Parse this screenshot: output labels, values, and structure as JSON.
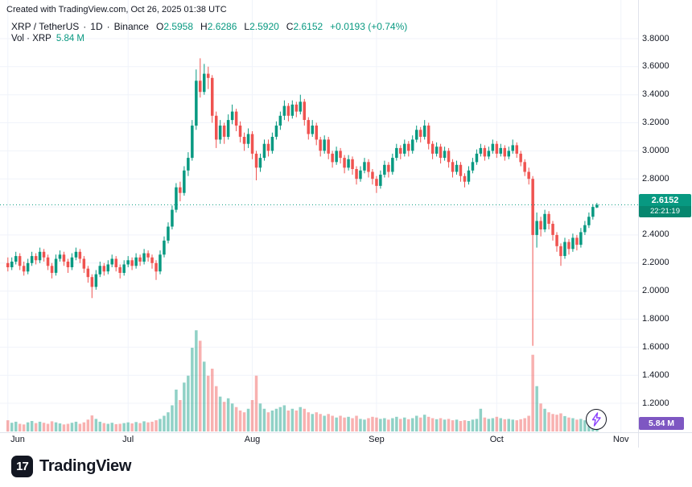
{
  "attribution": "Created with TradingView.com, Oct 26, 2025 01:38 UTC",
  "legend": {
    "symbol": "XRP / TetherUS",
    "dot1": "·",
    "interval": "1D",
    "dot2": "·",
    "exchange": "Binance",
    "ohlc": [
      {
        "k": "O",
        "v": "2.5958"
      },
      {
        "k": "H",
        "v": "2.6286"
      },
      {
        "k": "L",
        "v": "2.5920"
      },
      {
        "k": "C",
        "v": "2.6152"
      }
    ],
    "change": "+0.0193 (+0.74%)",
    "volume_label": "Vol · XRP",
    "volume_value": "5.84 M"
  },
  "price_scale": {
    "ticks": [
      "3.8000",
      "3.6000",
      "3.4000",
      "3.2000",
      "3.0000",
      "2.8000",
      "2.6000",
      "2.4000",
      "2.2000",
      "2.0000",
      "1.8000",
      "1.6000",
      "1.4000",
      "1.2000"
    ],
    "last_price": "2.6152",
    "countdown": "22:21:19",
    "volume_value": "5.84 M"
  },
  "time_scale": {
    "months": [
      {
        "label": "Jun",
        "bar_index": 0
      },
      {
        "label": "Jul",
        "bar_index": 30
      },
      {
        "label": "Aug",
        "bar_index": 61
      },
      {
        "label": "Sep",
        "bar_index": 92
      },
      {
        "label": "Oct",
        "bar_index": 122
      },
      {
        "label": "Nov",
        "bar_index": 153
      }
    ]
  },
  "footer": {
    "logo_mark": "17",
    "brand": "TradingView"
  },
  "colors": {
    "up_color": "#089981",
    "down_color": "#ef5350",
    "grid": "#f0f3fa",
    "axis_line": "#e0e3eb",
    "text": "#131722",
    "badge_teal": "#089981",
    "vol_badge_bg": "#7e57c2",
    "bolt": "#8a3ffc"
  },
  "chart_data": {
    "type": "candlestick",
    "title": "XRP / TetherUS · 1D · Binance",
    "symbol": "XRP/TetherUS",
    "exchange": "Binance",
    "interval": "1D",
    "x_range": [
      "2025-06-01",
      "2025-10-26"
    ],
    "ylim": [
      1.2,
      3.8
    ],
    "vol_axis_max": 30,
    "volume_units": "millions XRP",
    "last_close": 2.6152,
    "ohlcv_columns": [
      "open",
      "high",
      "low",
      "close",
      "volume_M"
    ],
    "ohlcv": [
      [
        2.2,
        2.24,
        2.14,
        2.17,
        3.2
      ],
      [
        2.17,
        2.24,
        2.15,
        2.21,
        2.5
      ],
      [
        2.21,
        2.28,
        2.19,
        2.25,
        2.8
      ],
      [
        2.25,
        2.27,
        2.15,
        2.18,
        2.2
      ],
      [
        2.18,
        2.21,
        2.11,
        2.14,
        2.0
      ],
      [
        2.14,
        2.23,
        2.12,
        2.2,
        2.6
      ],
      [
        2.2,
        2.28,
        2.18,
        2.25,
        3.0
      ],
      [
        2.25,
        2.27,
        2.19,
        2.22,
        2.4
      ],
      [
        2.22,
        2.31,
        2.2,
        2.28,
        2.8
      ],
      [
        2.28,
        2.3,
        2.21,
        2.24,
        2.5
      ],
      [
        2.24,
        2.26,
        2.15,
        2.18,
        2.2
      ],
      [
        2.18,
        2.2,
        2.09,
        2.13,
        2.9
      ],
      [
        2.13,
        2.26,
        2.11,
        2.23,
        2.6
      ],
      [
        2.23,
        2.29,
        2.21,
        2.26,
        2.3
      ],
      [
        2.26,
        2.28,
        2.18,
        2.21,
        2.0
      ],
      [
        2.21,
        2.23,
        2.13,
        2.17,
        2.2
      ],
      [
        2.17,
        2.27,
        2.15,
        2.24,
        2.5
      ],
      [
        2.24,
        2.31,
        2.22,
        2.28,
        2.8
      ],
      [
        2.28,
        2.3,
        2.2,
        2.23,
        2.2
      ],
      [
        2.23,
        2.25,
        2.13,
        2.16,
        2.6
      ],
      [
        2.16,
        2.18,
        2.06,
        2.1,
        3.4
      ],
      [
        2.1,
        2.12,
        1.95,
        2.03,
        4.6
      ],
      [
        2.03,
        2.15,
        2.01,
        2.12,
        3.6
      ],
      [
        2.12,
        2.21,
        2.1,
        2.18,
        2.8
      ],
      [
        2.18,
        2.2,
        2.11,
        2.14,
        2.4
      ],
      [
        2.14,
        2.22,
        2.12,
        2.19,
        2.2
      ],
      [
        2.19,
        2.26,
        2.17,
        2.23,
        2.5
      ],
      [
        2.23,
        2.25,
        2.14,
        2.17,
        2.1
      ],
      [
        2.17,
        2.19,
        2.09,
        2.13,
        2.2
      ],
      [
        2.13,
        2.22,
        2.11,
        2.19,
        2.4
      ],
      [
        2.19,
        2.25,
        2.17,
        2.22,
        2.6
      ],
      [
        2.22,
        2.24,
        2.15,
        2.18,
        2.3
      ],
      [
        2.18,
        2.27,
        2.16,
        2.24,
        2.7
      ],
      [
        2.24,
        2.26,
        2.18,
        2.21,
        2.4
      ],
      [
        2.21,
        2.3,
        2.19,
        2.27,
        2.9
      ],
      [
        2.27,
        2.29,
        2.21,
        2.24,
        2.6
      ],
      [
        2.24,
        2.26,
        2.16,
        2.2,
        2.8
      ],
      [
        2.2,
        2.22,
        2.08,
        2.14,
        3.2
      ],
      [
        2.14,
        2.29,
        2.12,
        2.26,
        3.6
      ],
      [
        2.26,
        2.39,
        2.24,
        2.36,
        4.5
      ],
      [
        2.36,
        2.49,
        2.34,
        2.46,
        5.5
      ],
      [
        2.46,
        2.61,
        2.44,
        2.58,
        7.5
      ],
      [
        2.58,
        2.77,
        2.56,
        2.74,
        12.0
      ],
      [
        2.74,
        2.78,
        2.64,
        2.7,
        9.0
      ],
      [
        2.7,
        2.89,
        2.68,
        2.86,
        14.0
      ],
      [
        2.86,
        2.99,
        2.82,
        2.95,
        16.0
      ],
      [
        2.95,
        3.22,
        2.93,
        3.18,
        24.0
      ],
      [
        3.18,
        3.58,
        3.15,
        3.5,
        29.0
      ],
      [
        3.5,
        3.66,
        3.38,
        3.42,
        26.0
      ],
      [
        3.42,
        3.62,
        3.4,
        3.55,
        20.0
      ],
      [
        3.55,
        3.6,
        3.44,
        3.52,
        16.0
      ],
      [
        3.52,
        3.54,
        3.2,
        3.25,
        18.0
      ],
      [
        3.25,
        3.28,
        3.02,
        3.08,
        13.0
      ],
      [
        3.08,
        3.22,
        3.05,
        3.18,
        10.0
      ],
      [
        3.18,
        3.2,
        3.05,
        3.1,
        8.5
      ],
      [
        3.1,
        3.26,
        3.08,
        3.22,
        9.5
      ],
      [
        3.22,
        3.33,
        3.19,
        3.28,
        8.0
      ],
      [
        3.28,
        3.3,
        3.14,
        3.18,
        7.0
      ],
      [
        3.18,
        3.21,
        3.06,
        3.1,
        6.0
      ],
      [
        3.1,
        3.13,
        3.0,
        3.05,
        5.5
      ],
      [
        3.05,
        3.16,
        3.02,
        3.12,
        6.5
      ],
      [
        3.12,
        3.14,
        2.94,
        2.98,
        9.0
      ],
      [
        2.98,
        3.0,
        2.79,
        2.88,
        16.0
      ],
      [
        2.88,
        2.98,
        2.85,
        2.95,
        8.0
      ],
      [
        2.95,
        3.08,
        2.93,
        3.05,
        6.5
      ],
      [
        3.05,
        3.08,
        2.96,
        3.0,
        5.5
      ],
      [
        3.0,
        3.13,
        2.98,
        3.1,
        6.0
      ],
      [
        3.1,
        3.21,
        3.08,
        3.18,
        6.5
      ],
      [
        3.18,
        3.28,
        3.15,
        3.25,
        7.0
      ],
      [
        3.25,
        3.36,
        3.22,
        3.32,
        7.5
      ],
      [
        3.32,
        3.34,
        3.21,
        3.25,
        6.0
      ],
      [
        3.25,
        3.36,
        3.23,
        3.33,
        6.5
      ],
      [
        3.33,
        3.35,
        3.24,
        3.28,
        6.0
      ],
      [
        3.28,
        3.4,
        3.26,
        3.35,
        7.0
      ],
      [
        3.35,
        3.37,
        3.18,
        3.22,
        6.5
      ],
      [
        3.22,
        3.24,
        3.08,
        3.12,
        5.5
      ],
      [
        3.12,
        3.22,
        3.1,
        3.18,
        5.0
      ],
      [
        3.18,
        3.2,
        3.04,
        3.08,
        5.5
      ],
      [
        3.08,
        3.1,
        2.96,
        3.0,
        5.0
      ],
      [
        3.0,
        3.11,
        2.98,
        3.08,
        4.5
      ],
      [
        3.08,
        3.1,
        2.94,
        2.98,
        5.0
      ],
      [
        2.98,
        3.0,
        2.88,
        2.92,
        4.5
      ],
      [
        2.92,
        3.03,
        2.9,
        3.0,
        4.0
      ],
      [
        3.0,
        3.02,
        2.91,
        2.95,
        4.5
      ],
      [
        2.95,
        2.97,
        2.84,
        2.88,
        4.0
      ],
      [
        2.88,
        2.97,
        2.86,
        2.94,
        4.2
      ],
      [
        2.94,
        2.96,
        2.83,
        2.87,
        3.8
      ],
      [
        2.87,
        2.89,
        2.76,
        2.8,
        4.5
      ],
      [
        2.8,
        2.89,
        2.78,
        2.86,
        3.6
      ],
      [
        2.86,
        2.95,
        2.84,
        2.92,
        3.4
      ],
      [
        2.92,
        2.94,
        2.81,
        2.85,
        3.8
      ],
      [
        2.85,
        2.87,
        2.76,
        2.8,
        4.2
      ],
      [
        2.8,
        2.82,
        2.7,
        2.75,
        4.0
      ],
      [
        2.75,
        2.86,
        2.73,
        2.83,
        3.6
      ],
      [
        2.83,
        2.93,
        2.81,
        2.9,
        3.8
      ],
      [
        2.9,
        2.92,
        2.81,
        2.85,
        3.4
      ],
      [
        2.85,
        2.98,
        2.83,
        2.95,
        3.8
      ],
      [
        2.95,
        3.05,
        2.93,
        3.02,
        4.2
      ],
      [
        3.02,
        3.04,
        2.94,
        2.98,
        3.6
      ],
      [
        2.98,
        3.08,
        2.96,
        3.05,
        4.0
      ],
      [
        3.05,
        3.07,
        2.96,
        3.0,
        3.5
      ],
      [
        3.0,
        3.11,
        2.98,
        3.08,
        3.8
      ],
      [
        3.08,
        3.18,
        3.06,
        3.15,
        4.5
      ],
      [
        3.15,
        3.17,
        3.06,
        3.1,
        4.0
      ],
      [
        3.1,
        3.22,
        3.08,
        3.18,
        4.8
      ],
      [
        3.18,
        3.2,
        3.01,
        3.05,
        4.2
      ],
      [
        3.05,
        3.07,
        2.94,
        2.98,
        3.8
      ],
      [
        2.98,
        3.06,
        2.96,
        3.03,
        3.5
      ],
      [
        3.03,
        3.05,
        2.91,
        2.95,
        3.8
      ],
      [
        2.95,
        3.03,
        2.93,
        3.0,
        3.4
      ],
      [
        3.0,
        3.02,
        2.88,
        2.92,
        3.6
      ],
      [
        2.92,
        2.94,
        2.81,
        2.85,
        3.2
      ],
      [
        2.85,
        2.93,
        2.83,
        2.9,
        3.4
      ],
      [
        2.9,
        2.92,
        2.78,
        2.82,
        3.0
      ],
      [
        2.82,
        2.84,
        2.74,
        2.78,
        3.2
      ],
      [
        2.78,
        2.89,
        2.76,
        2.86,
        3.0
      ],
      [
        2.86,
        2.95,
        2.84,
        2.92,
        3.4
      ],
      [
        2.92,
        3.01,
        2.9,
        2.98,
        3.6
      ],
      [
        2.98,
        3.05,
        2.96,
        3.02,
        6.5
      ],
      [
        3.02,
        3.04,
        2.93,
        2.96,
        4.0
      ],
      [
        2.96,
        3.03,
        2.94,
        3.0,
        3.6
      ],
      [
        3.0,
        3.08,
        2.98,
        3.05,
        3.8
      ],
      [
        3.05,
        3.07,
        2.95,
        2.98,
        4.2
      ],
      [
        2.98,
        3.05,
        2.96,
        3.02,
        3.8
      ],
      [
        3.02,
        3.04,
        2.93,
        2.96,
        3.5
      ],
      [
        2.96,
        3.03,
        2.94,
        3.0,
        3.6
      ],
      [
        3.0,
        3.08,
        2.98,
        3.04,
        3.4
      ],
      [
        3.04,
        3.06,
        2.95,
        2.98,
        3.2
      ],
      [
        2.98,
        3.0,
        2.89,
        2.92,
        3.5
      ],
      [
        2.92,
        2.94,
        2.82,
        2.85,
        3.8
      ],
      [
        2.85,
        2.88,
        2.76,
        2.8,
        4.5
      ],
      [
        2.8,
        2.82,
        1.61,
        2.4,
        22.0
      ],
      [
        2.4,
        2.56,
        2.31,
        2.5,
        13.0
      ],
      [
        2.5,
        2.53,
        2.39,
        2.44,
        8.0
      ],
      [
        2.44,
        2.58,
        2.42,
        2.55,
        6.5
      ],
      [
        2.55,
        2.57,
        2.44,
        2.48,
        5.5
      ],
      [
        2.48,
        2.5,
        2.36,
        2.4,
        5.0
      ],
      [
        2.4,
        2.42,
        2.28,
        2.32,
        4.8
      ],
      [
        2.32,
        2.34,
        2.18,
        2.25,
        5.2
      ],
      [
        2.25,
        2.38,
        2.23,
        2.35,
        4.4
      ],
      [
        2.35,
        2.37,
        2.26,
        2.3,
        4.0
      ],
      [
        2.3,
        2.41,
        2.28,
        2.38,
        3.8
      ],
      [
        2.38,
        2.4,
        2.29,
        2.33,
        3.4
      ],
      [
        2.33,
        2.45,
        2.31,
        2.42,
        3.6
      ],
      [
        2.42,
        2.5,
        2.4,
        2.47,
        3.2
      ],
      [
        2.47,
        2.56,
        2.45,
        2.53,
        3.4
      ],
      [
        2.53,
        2.62,
        2.51,
        2.6,
        4.2
      ],
      [
        2.5958,
        2.6286,
        2.592,
        2.6152,
        5.84
      ]
    ]
  }
}
